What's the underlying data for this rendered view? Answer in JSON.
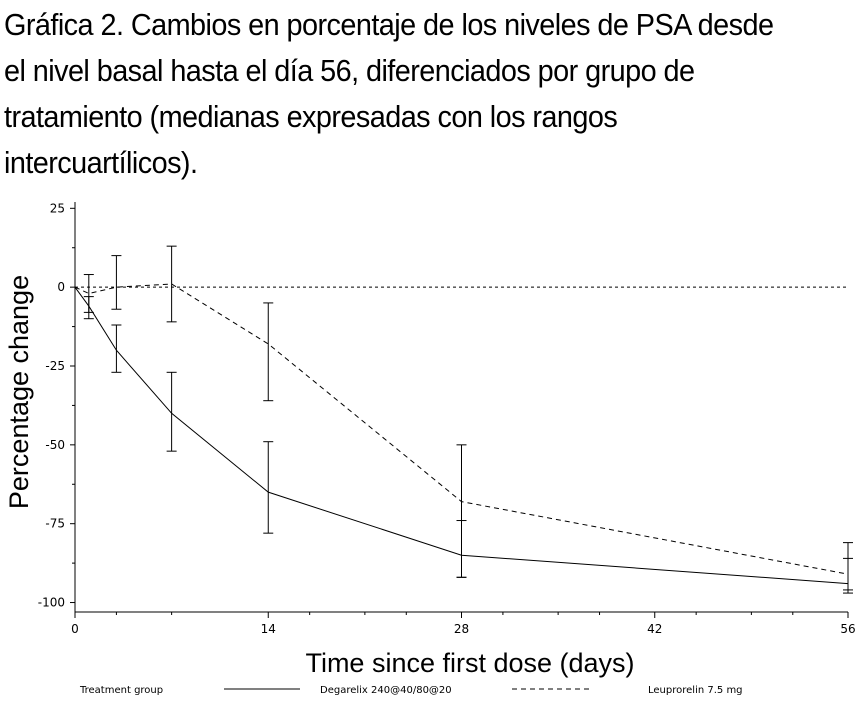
{
  "chart_data": {
    "type": "line",
    "title": "Gráfica 2. Cambios en porcentaje de los niveles de PSA desde el nivel basal hasta el día 56, diferenciados por grupo de tratamiento (medianas expresadas con los rangos intercuartílicos).",
    "xlabel": "Time since first dose (days)",
    "ylabel": "Percentage change",
    "xlim": [
      0,
      56
    ],
    "ylim": [
      -103,
      27
    ],
    "x_ticks": [
      0,
      14,
      28,
      42,
      56
    ],
    "x_tick_labels": [
      "0",
      "14",
      "28",
      "42",
      "56"
    ],
    "x_minor_ticks": [
      3,
      7,
      17,
      21,
      24,
      31,
      35,
      38,
      45,
      49,
      52
    ],
    "y_ticks": [
      25,
      0,
      -25,
      -50,
      -75,
      -100
    ],
    "y_tick_labels": [
      "25",
      "0",
      "-25",
      "-50",
      "-75",
      "-100"
    ],
    "reference_line": 0,
    "legend": {
      "title": "Treatment group",
      "placement": "bottom"
    },
    "series": [
      {
        "name": "Degarelix 240@40/80@20",
        "style": "solid",
        "points": [
          {
            "x": 0,
            "y": 0
          },
          {
            "x": 1,
            "y": -6,
            "lo": -10,
            "hi": -3
          },
          {
            "x": 3,
            "y": -20,
            "lo": -27,
            "hi": -12
          },
          {
            "x": 7,
            "y": -40,
            "lo": -52,
            "hi": -27
          },
          {
            "x": 14,
            "y": -65,
            "lo": -78,
            "hi": -49
          },
          {
            "x": 28,
            "y": -85,
            "lo": -92,
            "hi": -74
          },
          {
            "x": 56,
            "y": -94,
            "lo": -96,
            "hi": -86
          }
        ]
      },
      {
        "name": "Leuprorelin 7.5 mg",
        "style": "dashed",
        "points": [
          {
            "x": 0,
            "y": 0
          },
          {
            "x": 1,
            "y": -2,
            "lo": -8,
            "hi": 4
          },
          {
            "x": 3,
            "y": 0,
            "lo": -7,
            "hi": 10
          },
          {
            "x": 7,
            "y": 1,
            "lo": -11,
            "hi": 13
          },
          {
            "x": 14,
            "y": -18,
            "lo": -36,
            "hi": -5
          },
          {
            "x": 28,
            "y": -68,
            "lo": -92,
            "hi": -50
          },
          {
            "x": 56,
            "y": -91,
            "lo": -97,
            "hi": -81
          }
        ]
      }
    ]
  }
}
